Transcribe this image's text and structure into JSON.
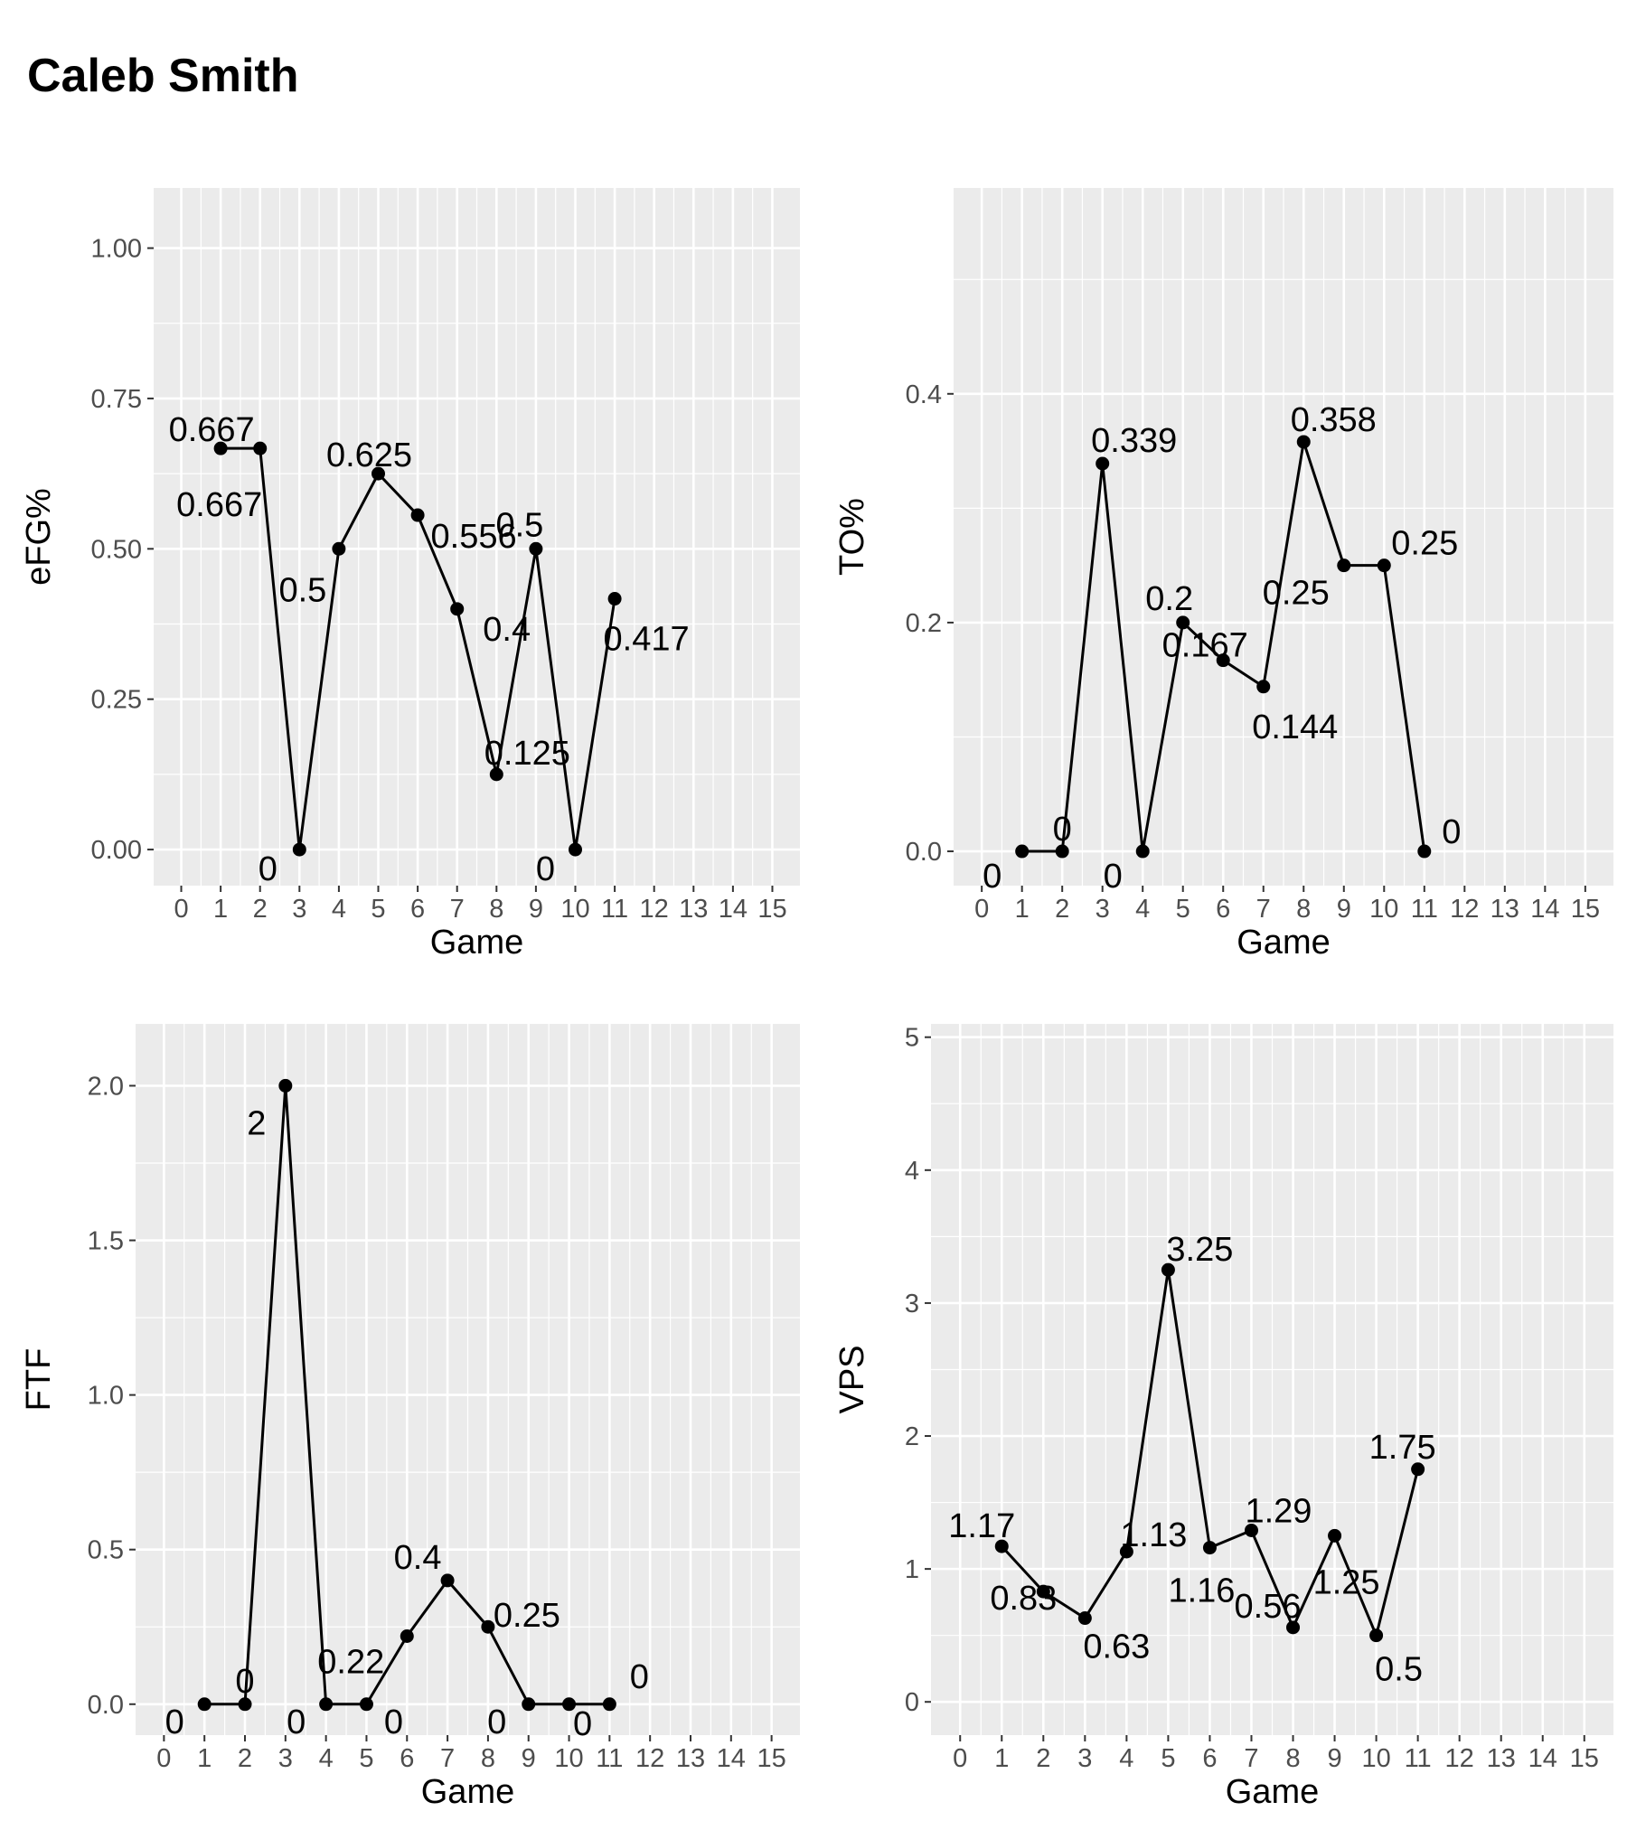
{
  "title": "Caleb Smith",
  "chart_data": [
    {
      "type": "line",
      "xlabel": "Game",
      "ylabel": "eFG%",
      "xlim": [
        -0.7,
        15.7
      ],
      "ylim": [
        -0.06,
        1.1
      ],
      "x_ticks": [
        0,
        1,
        2,
        3,
        4,
        5,
        6,
        7,
        8,
        9,
        10,
        11,
        12,
        13,
        14,
        15
      ],
      "y_ticks": [
        0,
        0.25,
        0.5,
        0.75,
        1.0
      ],
      "y_tick_labels": [
        "0.00",
        "0.25",
        "0.50",
        "0.75",
        "1.00"
      ],
      "x": [
        1,
        2,
        3,
        4,
        5,
        6,
        7,
        8,
        9,
        10,
        11
      ],
      "y": [
        0.667,
        0.667,
        0,
        0.5,
        0.625,
        0.556,
        0.4,
        0.125,
        0.5,
        0,
        0.417
      ],
      "labels": [
        "0.667",
        "0.667",
        "0",
        "0.5",
        "0.625",
        "0.556",
        "0.4",
        "0.125",
        "0.5",
        "0",
        "0.417"
      ]
    },
    {
      "type": "line",
      "xlabel": "Game",
      "ylabel": "TO%",
      "xlim": [
        -0.7,
        15.7
      ],
      "ylim": [
        -0.03,
        0.58
      ],
      "x_ticks": [
        0,
        1,
        2,
        3,
        4,
        5,
        6,
        7,
        8,
        9,
        10,
        11,
        12,
        13,
        14,
        15
      ],
      "y_ticks": [
        0,
        0.2,
        0.4
      ],
      "y_tick_labels": [
        "0.0",
        "0.2",
        "0.4"
      ],
      "x": [
        1,
        2,
        3,
        4,
        5,
        6,
        7,
        8,
        9,
        10,
        11
      ],
      "y": [
        0,
        0,
        0.339,
        0,
        0.2,
        0.167,
        0.144,
        0.358,
        0.25,
        0.25,
        0
      ],
      "labels": [
        "0",
        "0",
        "0.339",
        "0",
        "0.2",
        "0.167",
        "0.144",
        "0.358",
        "0.25",
        "0.25",
        "0"
      ]
    },
    {
      "type": "line",
      "xlabel": "Game",
      "ylabel": "FTF",
      "xlim": [
        -0.7,
        15.7
      ],
      "ylim": [
        -0.1,
        2.2
      ],
      "x_ticks": [
        0,
        1,
        2,
        3,
        4,
        5,
        6,
        7,
        8,
        9,
        10,
        11,
        12,
        13,
        14,
        15
      ],
      "y_ticks": [
        0,
        0.5,
        1.0,
        1.5,
        2.0
      ],
      "y_tick_labels": [
        "0.0",
        "0.5",
        "1.0",
        "1.5",
        "2.0"
      ],
      "x": [
        1,
        2,
        3,
        4,
        5,
        6,
        7,
        8,
        9,
        10,
        11
      ],
      "y": [
        0,
        0,
        2,
        0,
        0,
        0.22,
        0.4,
        0.25,
        0,
        0,
        0
      ],
      "labels": [
        "0",
        "0",
        "2",
        "0",
        "0",
        "0.22",
        "0.4",
        "0.25",
        "0",
        "0",
        "0"
      ]
    },
    {
      "type": "line",
      "xlabel": "Game",
      "ylabel": "VPS",
      "xlim": [
        -0.7,
        15.7
      ],
      "ylim": [
        -0.25,
        5.1
      ],
      "x_ticks": [
        0,
        1,
        2,
        3,
        4,
        5,
        6,
        7,
        8,
        9,
        10,
        11,
        12,
        13,
        14,
        15
      ],
      "y_ticks": [
        0,
        1,
        2,
        3,
        4,
        5
      ],
      "y_tick_labels": [
        "0",
        "1",
        "2",
        "3",
        "4",
        "5"
      ],
      "x": [
        1,
        2,
        3,
        4,
        5,
        6,
        7,
        8,
        9,
        10,
        11
      ],
      "y": [
        1.17,
        0.83,
        0.63,
        1.13,
        3.25,
        1.16,
        1.29,
        0.56,
        1.25,
        0.5,
        1.75
      ],
      "labels": [
        "1.17",
        "0.83",
        "0.63",
        "1.13",
        "3.25",
        "1.16",
        "1.29",
        "0.56",
        "1.25",
        "0.5",
        "1.75"
      ]
    }
  ]
}
